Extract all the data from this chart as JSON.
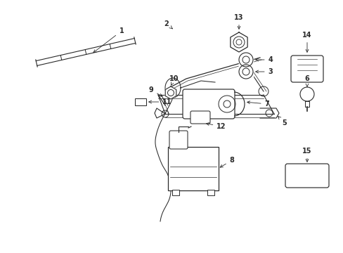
{
  "bg_color": "#ffffff",
  "lc": "#2a2a2a",
  "figsize": [
    4.89,
    3.6
  ],
  "dpi": 100,
  "xlim": [
    0,
    489
  ],
  "ylim": [
    0,
    360
  ]
}
